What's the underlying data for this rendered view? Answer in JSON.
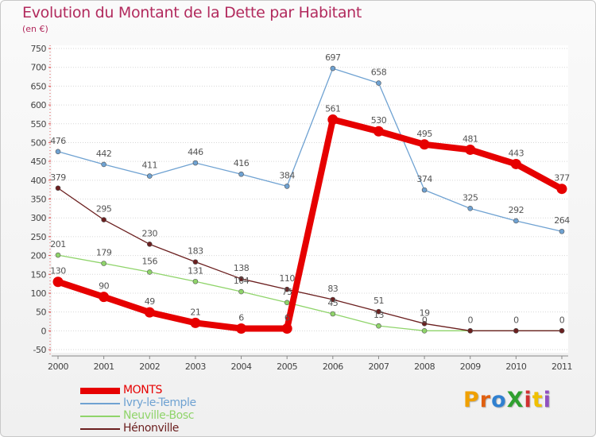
{
  "chart_data": {
    "type": "line",
    "title": "Evolution du Montant de la Dette par Habitant",
    "subtitle": "(en €)",
    "x": [
      "2000",
      "2001",
      "2002",
      "2003",
      "2004",
      "2005",
      "2006",
      "2007",
      "2008",
      "2009",
      "2010",
      "2011"
    ],
    "y_ticks": [
      "-50",
      "0",
      "50",
      "100",
      "150",
      "200",
      "250",
      "300",
      "350",
      "400",
      "450",
      "500",
      "550",
      "600",
      "650",
      "700",
      "750"
    ],
    "ylim": [
      -50,
      750
    ],
    "grid": "horizontal-dotted",
    "legend": "bottom-left",
    "series": [
      {
        "name": "MONTS",
        "color": "#e60000",
        "values": [
          130,
          90,
          49,
          21,
          6,
          6,
          561,
          530,
          495,
          481,
          443,
          377
        ],
        "labels": [
          "130",
          "90",
          "49",
          "21",
          "6",
          "6",
          "561",
          "530",
          "495",
          "481",
          "443",
          "377"
        ]
      },
      {
        "name": "Ivry-le-Temple",
        "color": "#6fa2d2",
        "values": [
          476,
          442,
          411,
          446,
          416,
          384,
          697,
          658,
          374,
          325,
          292,
          264
        ],
        "labels": [
          "476",
          "442",
          "411",
          "446",
          "416",
          "384",
          "697",
          "658",
          "374",
          "325",
          "292",
          "264"
        ]
      },
      {
        "name": "Neuville-Bosc",
        "color": "#8fd46a",
        "values": [
          201,
          179,
          156,
          131,
          104,
          75,
          45,
          13,
          0,
          0,
          0,
          0
        ],
        "labels": [
          "201",
          "179",
          "156",
          "131",
          "104",
          "75",
          "45",
          "13",
          "0",
          "",
          "",
          ""
        ]
      },
      {
        "name": "Hénonville",
        "color": "#6b1f1f",
        "values": [
          379,
          295,
          230,
          183,
          138,
          110,
          83,
          51,
          19,
          0,
          0,
          0
        ],
        "labels": [
          "379",
          "295",
          "230",
          "183",
          "138",
          "110",
          "83",
          "51",
          "19",
          "0",
          "0",
          "0"
        ]
      }
    ]
  },
  "logo": {
    "text": "ProXiti",
    "colors": [
      "#f0a000",
      "#e06010",
      "#3080d0",
      "#30a030",
      "#d03030",
      "#f0c000",
      "#9050c0"
    ]
  }
}
